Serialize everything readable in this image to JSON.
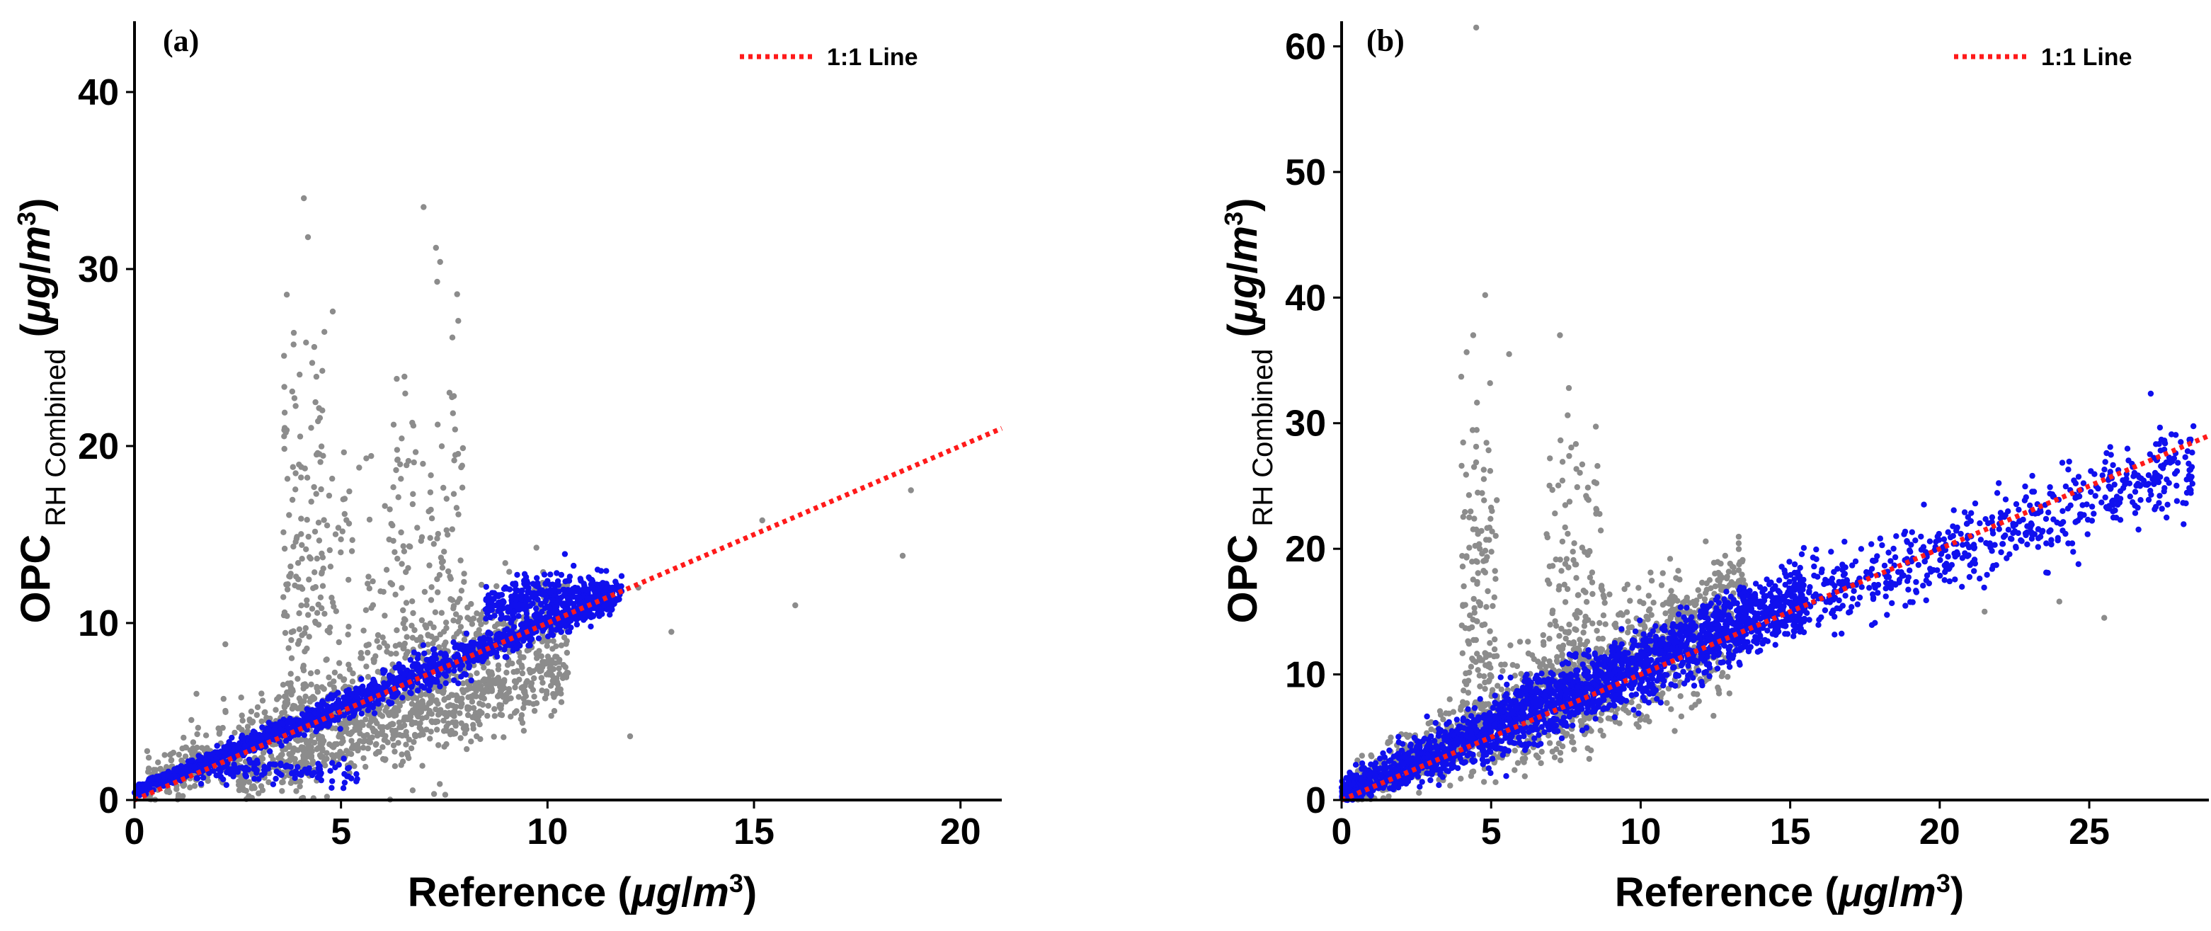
{
  "chart_data": [
    {
      "type": "scatter",
      "panel_label": "(a)",
      "xlabel": "Reference (μg/m3)",
      "ylabel": "OPC RH Combined (μg/m3)",
      "xlim": [
        0,
        21
      ],
      "ylim": [
        0,
        44
      ],
      "xticks": [
        0,
        5,
        10,
        15,
        20
      ],
      "yticks": [
        0,
        10,
        20,
        30,
        40
      ],
      "legend": {
        "label": "1:1 Line",
        "placement": "top-right"
      },
      "reference_line": {
        "x": [
          0,
          21
        ],
        "y": [
          0,
          21
        ],
        "color": "#ff1a1a"
      },
      "series": [
        {
          "color": "#8c8c8c",
          "clusters": [
            {
              "n": 900,
              "x_range": [
                0.3,
                10.5
              ],
              "slope": 0.93,
              "intercept": 0.6,
              "spread": 1.6
            },
            {
              "n": 550,
              "x_range": [
                2.5,
                10.5
              ],
              "slope": 0.75,
              "intercept": -0.8,
              "spread": 0.9
            },
            {
              "n": 160,
              "x_range": [
                3.6,
                4.6
              ],
              "slope": 0.0,
              "intercept": 13.5,
              "spread": 6.5
            },
            {
              "n": 140,
              "x_range": [
                6.3,
                8.0
              ],
              "slope": 0.0,
              "intercept": 13.0,
              "spread": 6.0
            },
            {
              "n": 80,
              "x_range": [
                4.6,
                6.3
              ],
              "slope": 0.0,
              "intercept": 11.5,
              "spread": 5.0
            }
          ],
          "extra_points": [
            [
              4.1,
              34.0
            ],
            [
              4.2,
              31.8
            ],
            [
              7.0,
              33.5
            ],
            [
              7.3,
              31.2
            ],
            [
              7.4,
              30.4
            ],
            [
              4.8,
              27.6
            ],
            [
              15.2,
              15.8
            ],
            [
              16.0,
              11.0
            ],
            [
              18.6,
              13.8
            ],
            [
              12.0,
              3.6
            ],
            [
              12.2,
              12.0
            ],
            [
              13.0,
              9.5
            ],
            [
              18.8,
              17.5
            ],
            [
              1.5,
              6.0
            ],
            [
              2.2,
              8.8
            ]
          ]
        },
        {
          "color": "#1010ee",
          "clusters": [
            {
              "n": 1500,
              "x_range": [
                0.0,
                11.8
              ],
              "slope": 0.95,
              "intercept": 0.5,
              "spread": 0.45
            },
            {
              "n": 120,
              "x_range": [
                1.5,
                5.5
              ],
              "slope": 0.0,
              "intercept": 1.6,
              "spread": 0.3
            },
            {
              "n": 300,
              "x_range": [
                8.5,
                11.5
              ],
              "slope": 0.3,
              "intercept": 8.5,
              "spread": 0.6
            }
          ],
          "extra_points": []
        }
      ]
    },
    {
      "type": "scatter",
      "panel_label": "(b)",
      "xlabel": "Reference (μg/m3)",
      "ylabel": "OPC RH Combined (μg/m3)",
      "xlim": [
        0,
        29
      ],
      "ylim": [
        0,
        62
      ],
      "xticks": [
        0,
        5,
        10,
        15,
        20,
        25
      ],
      "yticks": [
        0,
        10,
        20,
        30,
        40,
        50,
        60
      ],
      "legend": {
        "label": "1:1 Line",
        "placement": "top-right"
      },
      "reference_line": {
        "x": [
          0,
          29
        ],
        "y": [
          0,
          29
        ],
        "color": "#ff1a1a"
      },
      "series": [
        {
          "color": "#8c8c8c",
          "clusters": [
            {
              "n": 1100,
              "x_range": [
                0.3,
                13.5
              ],
              "slope": 1.2,
              "intercept": 0.5,
              "spread": 2.0
            },
            {
              "n": 150,
              "x_range": [
                4.0,
                5.2
              ],
              "slope": 0.0,
              "intercept": 16.0,
              "spread": 7.0
            },
            {
              "n": 150,
              "x_range": [
                6.8,
                8.8
              ],
              "slope": 0.0,
              "intercept": 16.0,
              "spread": 6.5
            },
            {
              "n": 200,
              "x_range": [
                5.0,
                13.0
              ],
              "slope": 0.9,
              "intercept": -1.0,
              "spread": 1.2
            }
          ],
          "extra_points": [
            [
              4.5,
              61.5
            ],
            [
              4.8,
              40.2
            ],
            [
              4.4,
              37.0
            ],
            [
              7.3,
              37.0
            ],
            [
              7.6,
              32.8
            ],
            [
              5.6,
              35.5
            ],
            [
              4.0,
              33.7
            ],
            [
              21.5,
              15.0
            ],
            [
              25.5,
              14.5
            ],
            [
              24.0,
              15.8
            ]
          ]
        },
        {
          "color": "#1010ee",
          "clusters": [
            {
              "n": 2200,
              "x_range": [
                0.0,
                15.5
              ],
              "slope": 1.0,
              "intercept": 0.6,
              "spread": 1.3
            },
            {
              "n": 600,
              "x_range": [
                15.0,
                28.5
              ],
              "slope": 0.85,
              "intercept": 2.5,
              "spread": 1.6
            },
            {
              "n": 150,
              "x_range": [
                5.0,
                14.0
              ],
              "slope": 1.15,
              "intercept": 0.5,
              "spread": 0.6
            }
          ],
          "extra_points": []
        }
      ]
    }
  ]
}
